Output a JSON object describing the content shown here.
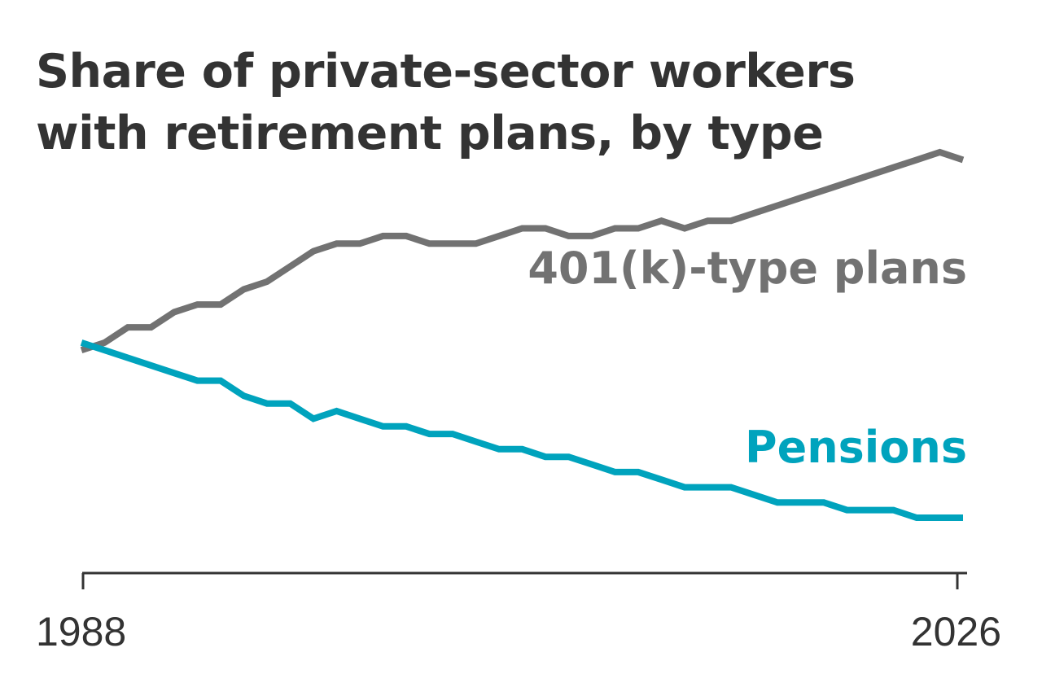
{
  "chart_data": {
    "type": "line",
    "title": "Share of private-sector workers with retirement plans, by type",
    "xlabel": "",
    "ylabel": "",
    "xlim": [
      1988,
      2026
    ],
    "ylim": [
      0,
      100
    ],
    "x_tick_labels": [
      "1988",
      "2026"
    ],
    "x": [
      1988,
      1989,
      1990,
      1991,
      1992,
      1993,
      1994,
      1995,
      1996,
      1997,
      1998,
      1999,
      2000,
      2001,
      2002,
      2003,
      2004,
      2005,
      2006,
      2007,
      2008,
      2009,
      2010,
      2011,
      2012,
      2013,
      2014,
      2015,
      2016,
      2017,
      2018,
      2019,
      2020,
      2021,
      2022,
      2023,
      2024,
      2025,
      2026
    ],
    "series": [
      {
        "name": "401(k)-type plans",
        "color": "#727272",
        "values": [
          40,
          41,
          43,
          43,
          45,
          46,
          46,
          48,
          49,
          51,
          53,
          54,
          54,
          55,
          55,
          54,
          54,
          54,
          55,
          56,
          56,
          55,
          55,
          56,
          56,
          57,
          56,
          57,
          57,
          58,
          59,
          60,
          61,
          62,
          63,
          64,
          65,
          66,
          65
        ]
      },
      {
        "name": "Pensions",
        "color": "#00a3bd",
        "values": [
          41,
          40,
          39,
          38,
          37,
          36,
          36,
          34,
          33,
          33,
          31,
          32,
          31,
          30,
          30,
          29,
          29,
          28,
          27,
          27,
          26,
          26,
          25,
          24,
          24,
          23,
          22,
          22,
          22,
          21,
          20,
          20,
          20,
          19,
          19,
          19,
          18,
          18,
          18
        ]
      }
    ],
    "axis_color": "#333333",
    "grid": false,
    "legend": "direct labels at right"
  }
}
